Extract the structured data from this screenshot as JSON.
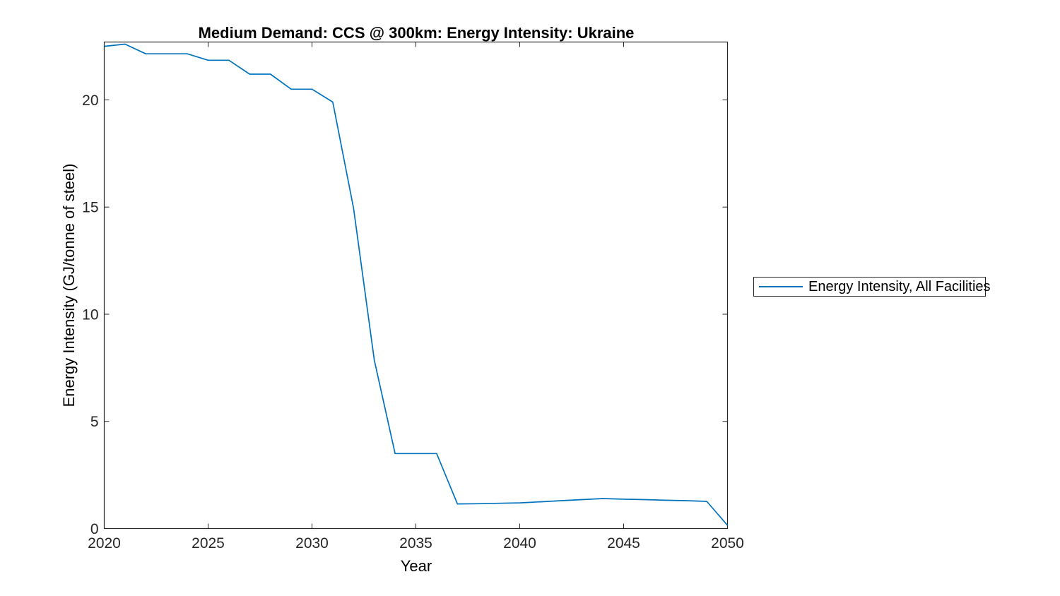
{
  "title": "Medium Demand: CCS @ 300km: Energy Intensity: Ukraine",
  "legend": {
    "label": "Energy Intensity, All Facilities",
    "position": "right-outside"
  },
  "colors": {
    "line": "#0072BD",
    "axis": "#262626",
    "title_text": "#000000",
    "background": "#ffffff"
  },
  "chart_data": {
    "type": "line",
    "title": "Medium Demand: CCS @ 300km: Energy Intensity: Ukraine",
    "xlabel": "Year",
    "ylabel": "Energy Intensity (GJ/tonne of steel)",
    "xlim": [
      2020,
      2050
    ],
    "ylim": [
      0,
      22.7
    ],
    "xticks": [
      2020,
      2025,
      2030,
      2035,
      2040,
      2045,
      2050
    ],
    "yticks": [
      0,
      5,
      10,
      15,
      20
    ],
    "grid": false,
    "legend_position": "right-outside",
    "x": [
      2020,
      2021,
      2022,
      2023,
      2024,
      2025,
      2026,
      2027,
      2028,
      2029,
      2030,
      2031,
      2032,
      2033,
      2034,
      2035,
      2036,
      2037,
      2038,
      2039,
      2040,
      2041,
      2042,
      2043,
      2044,
      2045,
      2046,
      2047,
      2048,
      2049,
      2050
    ],
    "series": [
      {
        "name": "Energy Intensity, All Facilities",
        "color": "#0072BD",
        "values": [
          22.5,
          22.6,
          22.15,
          22.15,
          22.15,
          21.85,
          21.85,
          21.2,
          21.2,
          20.5,
          20.5,
          19.9,
          14.95,
          7.85,
          3.5,
          3.5,
          3.5,
          1.15,
          1.16,
          1.18,
          1.2,
          1.25,
          1.3,
          1.35,
          1.4,
          1.37,
          1.35,
          1.32,
          1.3,
          1.27,
          0.15
        ]
      }
    ]
  }
}
